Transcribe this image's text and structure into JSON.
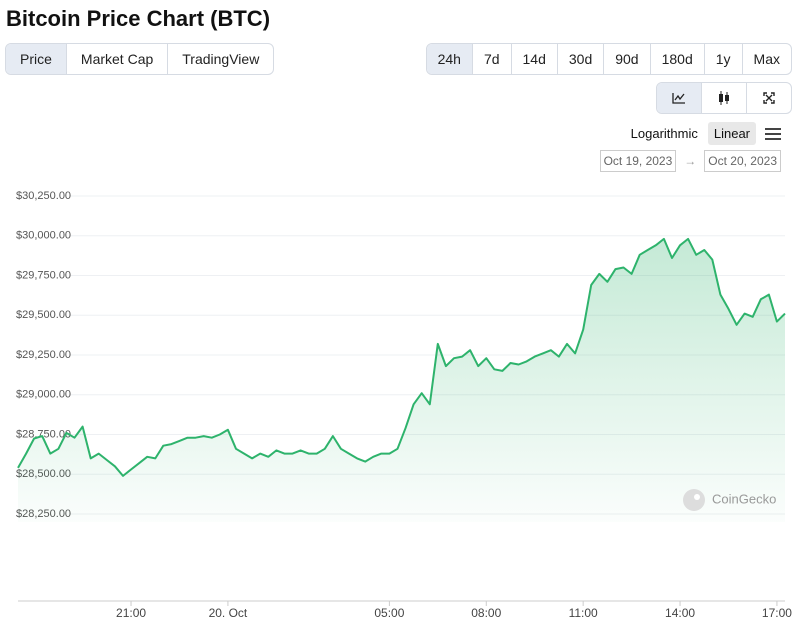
{
  "header": {
    "title": "Bitcoin Price Chart (BTC)"
  },
  "tabs": [
    "Price",
    "Market Cap",
    "TradingView"
  ],
  "ranges": [
    "24h",
    "7d",
    "14d",
    "30d",
    "90d",
    "180d",
    "1y",
    "Max"
  ],
  "scale_options": [
    "Logarithmic",
    "Linear"
  ],
  "date_range": {
    "from": "Oct 19, 2023",
    "separator": "→",
    "to": "Oct 20, 2023"
  },
  "watermark": "CoinGecko",
  "chart_data": {
    "type": "area",
    "color": "#2eb36c",
    "grid": true,
    "values": [
      28540,
      28630,
      28725,
      28740,
      28630,
      28660,
      28760,
      28730,
      28800,
      28600,
      28630,
      28590,
      28550,
      28490,
      28530,
      28570,
      28610,
      28600,
      28680,
      28690,
      28710,
      28730,
      28730,
      28740,
      28730,
      28750,
      28780,
      28660,
      28630,
      28600,
      28630,
      28610,
      28650,
      28630,
      28630,
      28650,
      28630,
      28630,
      28660,
      28740,
      28660,
      28630,
      28600,
      28580,
      28610,
      28630,
      28630,
      28660,
      28790,
      28940,
      29010,
      28940,
      29320,
      29180,
      29230,
      29240,
      29280,
      29180,
      29230,
      29160,
      29150,
      29200,
      29190,
      29210,
      29240,
      29260,
      29280,
      29240,
      29320,
      29260,
      29410,
      29690,
      29760,
      29710,
      29790,
      29800,
      29760,
      29880,
      29910,
      29940,
      29980,
      29860,
      29940,
      29980,
      29880,
      29910,
      29850,
      29630,
      29540,
      29440,
      29510,
      29490,
      29600,
      29630,
      29460,
      29510
    ],
    "xlim": [
      0,
      95
    ],
    "xticks": [
      {
        "value": 14,
        "label": "21:00"
      },
      {
        "value": 26,
        "label": "20. Oct"
      },
      {
        "value": 46,
        "label": "05:00"
      },
      {
        "value": 58,
        "label": "08:00"
      },
      {
        "value": 70,
        "label": "11:00"
      },
      {
        "value": 82,
        "label": "14:00"
      },
      {
        "value": 94,
        "label": "17:00"
      }
    ],
    "ylim": [
      28200,
      30300
    ],
    "yticks": [
      {
        "value": 28250,
        "label": "$28,250.00"
      },
      {
        "value": 28500,
        "label": "$28,500.00"
      },
      {
        "value": 28750,
        "label": "$28,750.00"
      },
      {
        "value": 29000,
        "label": "$29,000.00"
      },
      {
        "value": 29250,
        "label": "$29,250.00"
      },
      {
        "value": 29500,
        "label": "$29,500.00"
      },
      {
        "value": 29750,
        "label": "$29,750.00"
      },
      {
        "value": 30000,
        "label": "$30,000.00"
      },
      {
        "value": 30250,
        "label": "$30,250.00"
      }
    ]
  }
}
